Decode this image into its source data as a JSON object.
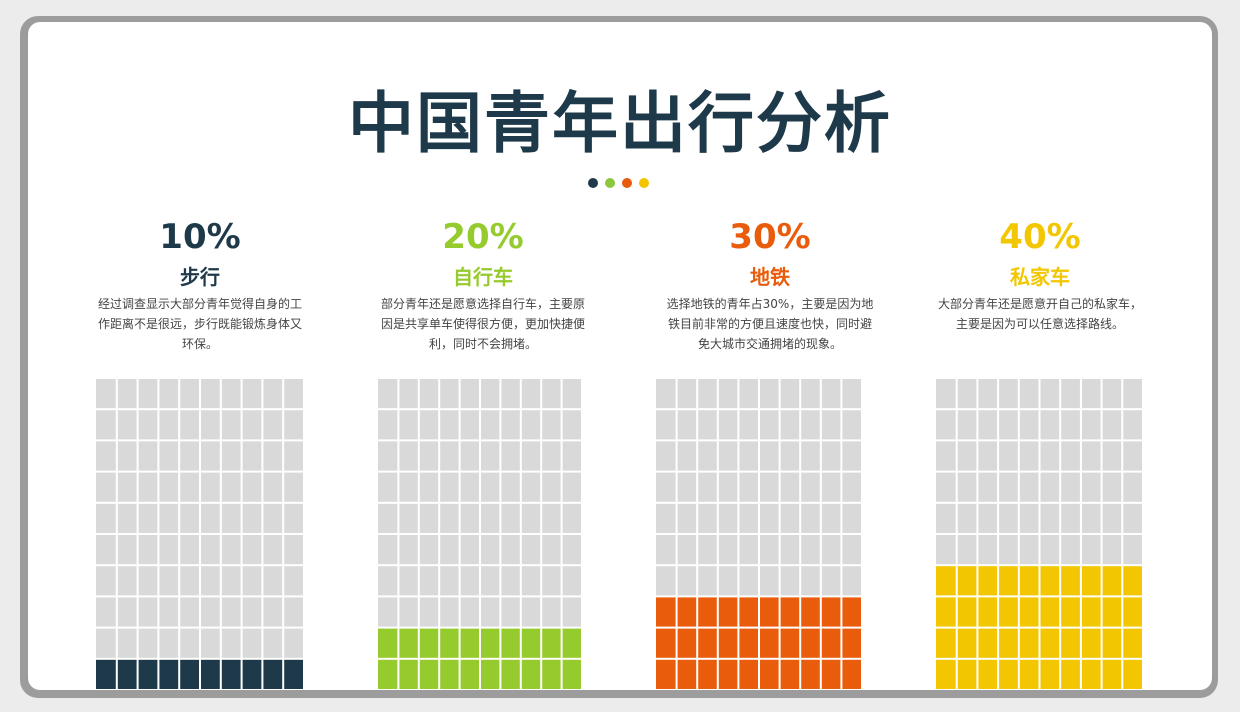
{
  "title": "中国青年出行分析",
  "dots": [
    "#1e3a4a",
    "#8dc63f",
    "#e85a0c",
    "#f2c500"
  ],
  "grid_empty_color": "#d9d9d9",
  "chart_data": {
    "type": "waffle",
    "title": "中国青年出行分析",
    "grid": {
      "columns": 10,
      "rows": 10
    },
    "series": [
      {
        "name": "步行",
        "value": 10,
        "label": "10%",
        "color": "#1e3a4a",
        "description": "经过调查显示大部分青年觉得自身的工作距离不是很远，步行既能锻炼身体又环保。"
      },
      {
        "name": "自行车",
        "value": 20,
        "label": "20%",
        "color": "#96cb2e",
        "description": "部分青年还是愿意选择自行车，主要原因是共享单车使得很方便，更加快捷便利，同时不会拥堵。"
      },
      {
        "name": "地铁",
        "value": 30,
        "label": "30%",
        "color": "#e95c0c",
        "description": "选择地铁的青年占30%，主要是因为地铁目前非常的方便且速度也快，同时避免大城市交通拥堵的现象。"
      },
      {
        "name": "私家车",
        "value": 40,
        "label": "40%",
        "color": "#f2c600",
        "description": "大部分青年还是愿意开自己的私家车，主要是因为可以任意选择路线。"
      }
    ]
  }
}
